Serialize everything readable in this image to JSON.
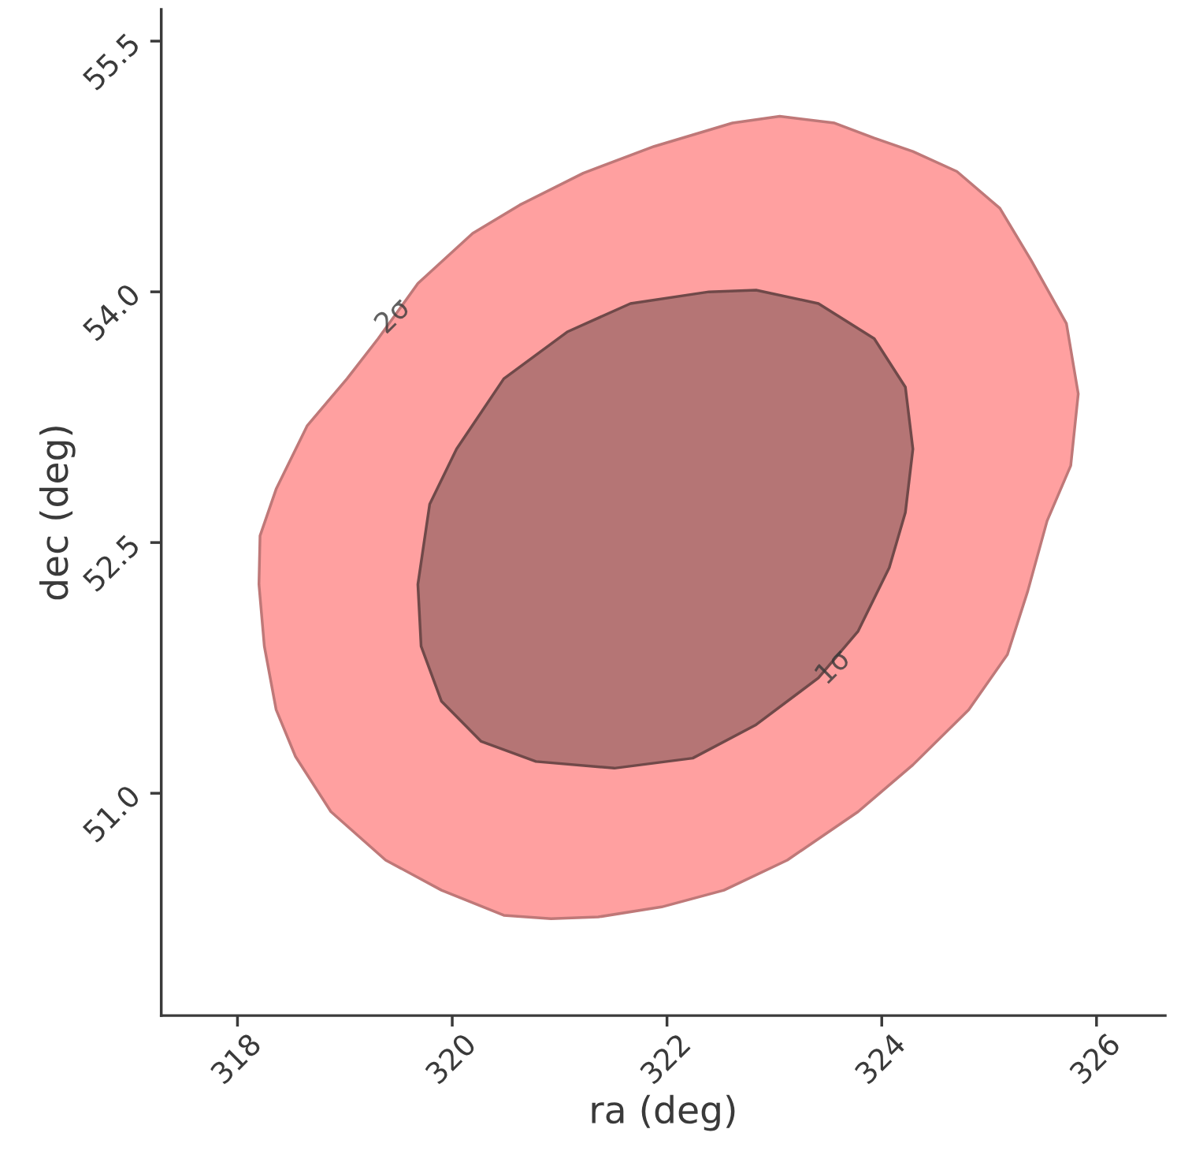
{
  "chart_data": {
    "type": "area",
    "xlabel": "ra (deg)",
    "ylabel": "dec (deg)",
    "xlim": [
      317.29,
      326.64
    ],
    "ylim": [
      49.67,
      55.69
    ],
    "xticks": [
      318,
      320,
      322,
      324,
      326
    ],
    "yticks": [
      {
        "value": 51.0,
        "label": "51.0"
      },
      {
        "value": 52.5,
        "label": "52.5"
      },
      {
        "value": 54.0,
        "label": "54.0"
      },
      {
        "value": 55.5,
        "label": "55.5"
      }
    ],
    "grid": false,
    "series": [
      {
        "color": "#ffa0a0",
        "x": [
          323.05,
          323.56,
          323.93,
          324.29,
          324.7,
          325.1,
          325.39,
          325.72,
          325.83,
          325.76,
          325.54,
          325.36,
          325.17,
          324.81,
          324.29,
          323.78,
          323.12,
          322.53,
          321.95,
          321.36,
          320.92,
          320.48,
          319.9,
          319.38,
          318.87,
          318.54,
          318.36,
          318.25,
          318.2,
          318.21,
          318.36,
          318.65,
          319.02,
          319.31,
          319.68,
          320.19,
          320.63,
          321.22,
          321.88,
          322.61
        ],
        "values": [
          55.05,
          55.01,
          54.92,
          54.84,
          54.72,
          54.5,
          54.19,
          53.81,
          53.39,
          52.96,
          52.63,
          52.21,
          51.83,
          51.5,
          51.17,
          50.89,
          50.6,
          50.42,
          50.32,
          50.26,
          50.25,
          50.27,
          50.42,
          50.6,
          50.89,
          51.22,
          51.5,
          51.88,
          52.25,
          52.54,
          52.82,
          53.2,
          53.48,
          53.72,
          54.05,
          54.35,
          54.52,
          54.71,
          54.87,
          55.01
        ]
      },
      {
        "color": "#b57575",
        "x": [
          322.83,
          323.41,
          323.93,
          324.22,
          324.29,
          324.22,
          324.07,
          323.78,
          323.41,
          322.83,
          322.24,
          321.51,
          320.78,
          320.27,
          319.9,
          319.71,
          319.68,
          319.79,
          320.04,
          320.48,
          321.07,
          321.66,
          322.39
        ],
        "values": [
          54.01,
          53.93,
          53.72,
          53.43,
          53.06,
          52.68,
          52.35,
          51.97,
          51.69,
          51.41,
          51.21,
          51.15,
          51.19,
          51.31,
          51.55,
          51.88,
          52.25,
          52.73,
          53.06,
          53.48,
          53.76,
          53.93,
          54.0
        ]
      }
    ],
    "annotations": [
      {
        "text": "2σ",
        "x": 319.45,
        "y": 53.85
      },
      {
        "text": "1σ",
        "x": 323.55,
        "y": 51.75
      }
    ]
  }
}
